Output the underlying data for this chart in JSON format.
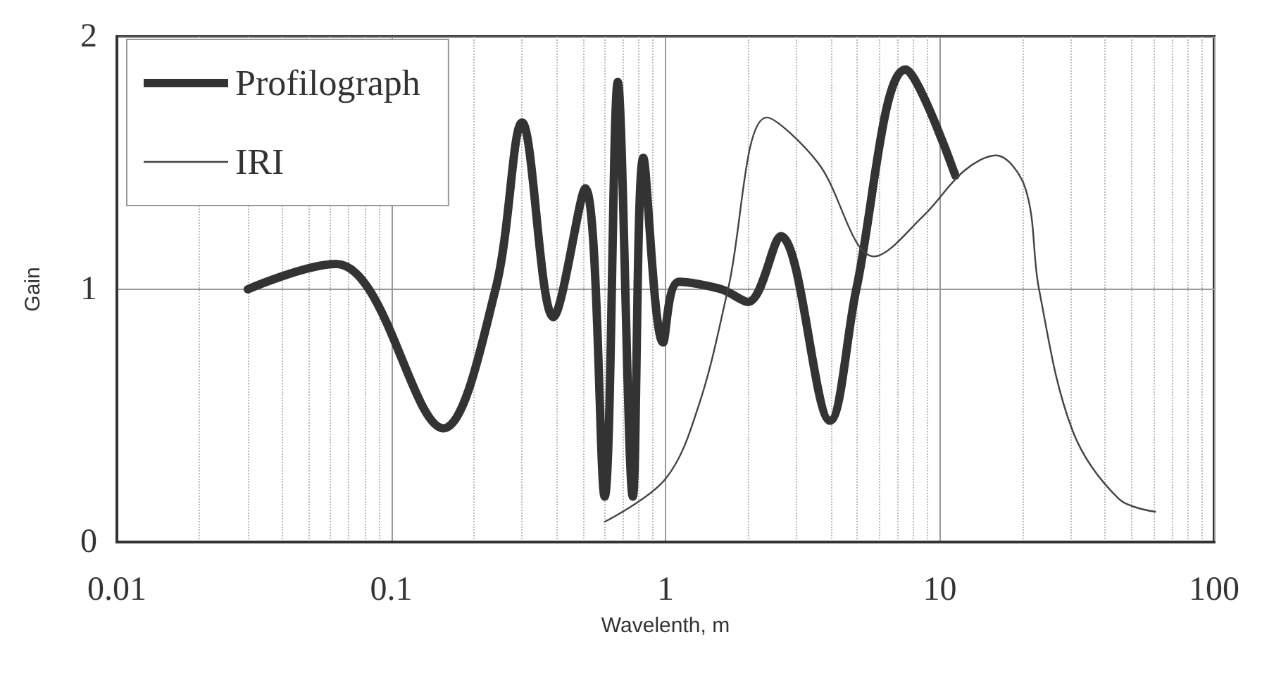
{
  "chart_data": {
    "type": "line",
    "xlabel": "Wavelenth, m",
    "ylabel": "Gain",
    "log": "x",
    "xlim": [
      0.01,
      100
    ],
    "xticks": [
      0.01,
      0.1,
      1,
      10,
      100
    ],
    "ylim": [
      0,
      2
    ],
    "yticks": [
      0,
      1,
      2
    ],
    "grid": true,
    "legend": "top left",
    "marker": "none",
    "line_style": "solid",
    "series": [
      {
        "name": "Profilograph",
        "color": "#333333",
        "x": [
          0.03,
          0.063,
          0.083,
          0.155,
          0.24,
          0.3,
          0.39,
          0.51,
          0.6,
          0.67,
          0.76,
          0.83,
          0.98,
          1.12,
          1.6,
          2.0,
          2.63,
          3.98,
          4.96,
          7.5,
          11.4
        ],
        "values": [
          1.0,
          1.1,
          1.0,
          0.45,
          1.0,
          1.66,
          0.89,
          1.4,
          0.18,
          1.82,
          0.18,
          1.52,
          0.79,
          1.03,
          1.0,
          0.95,
          1.21,
          0.48,
          1.0,
          1.87,
          1.45
        ]
      },
      {
        "name": "IRI",
        "color": "#444444",
        "x": [
          0.6,
          1.0,
          1.33,
          1.69,
          2.34,
          3.6,
          5.77,
          8.7,
          12.3,
          16.0,
          20.5,
          23,
          30.5,
          45,
          61
        ],
        "values": [
          0.08,
          0.25,
          0.55,
          1.0,
          1.68,
          1.5,
          1.13,
          1.29,
          1.47,
          1.53,
          1.4,
          1.0,
          0.44,
          0.17,
          0.12
        ]
      }
    ]
  }
}
